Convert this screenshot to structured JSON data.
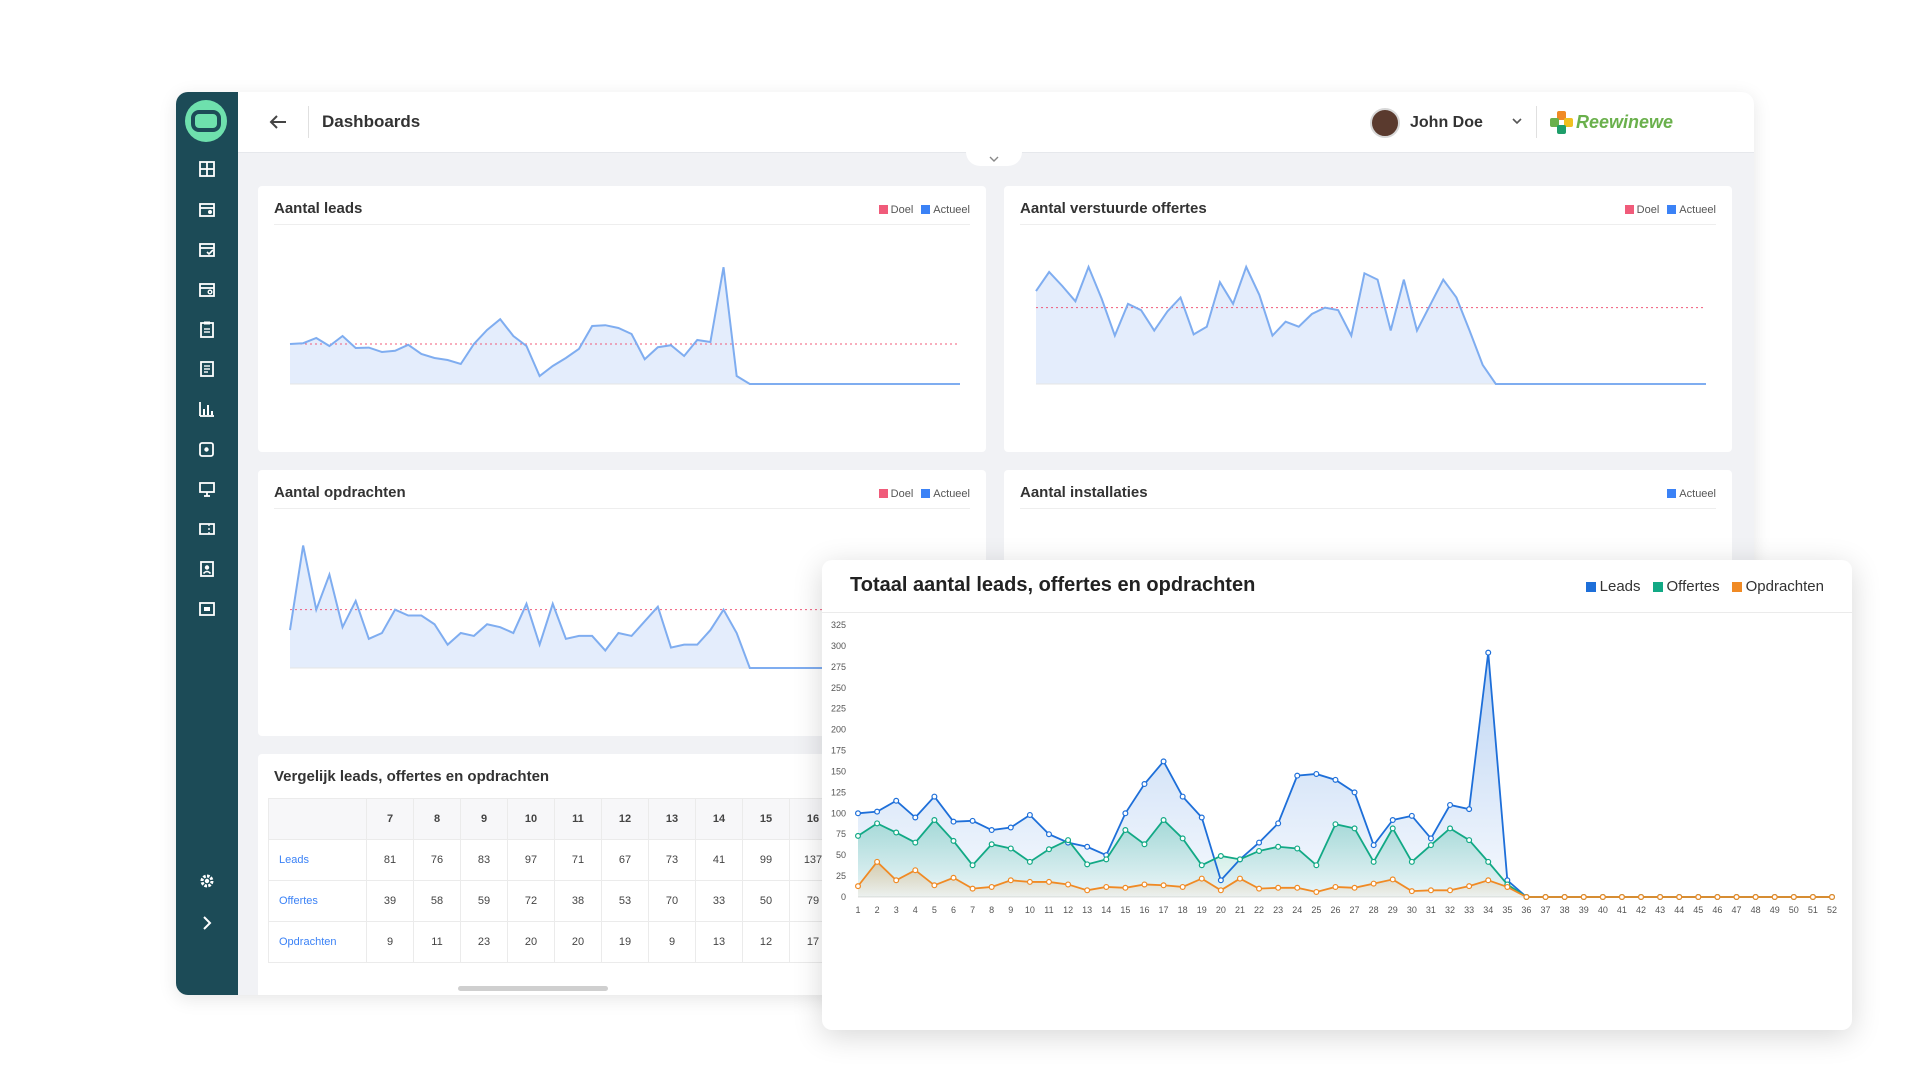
{
  "header": {
    "title": "Dashboards",
    "user_name": "John Doe",
    "brand_name": "Reewinewe"
  },
  "sidebar": {
    "icons": [
      "dashboard-grid-icon",
      "calendar-icon",
      "calendar-check-icon",
      "calendar-user-icon",
      "clipboard-icon",
      "document-icon",
      "bar-chart-icon",
      "puzzle-icon",
      "presentation-icon",
      "ticket-icon",
      "contact-card-icon",
      "media-icon"
    ],
    "settings_icon": "gear-icon",
    "expand_icon": "chevron-right-icon"
  },
  "colors": {
    "sidebar": "#1c4b57",
    "accent": "#6ee0ad",
    "doel": "#f05b7a",
    "actueel": "#3b82f6",
    "leads": "#1e6fd9",
    "offertes": "#12a985",
    "opdrachten": "#f08a24"
  },
  "cards": {
    "leads": {
      "title": "Aantal leads",
      "legend": [
        "Doel",
        "Actueel"
      ]
    },
    "offertes": {
      "title": "Aantal verstuurde offertes",
      "legend": [
        "Doel",
        "Actueel"
      ]
    },
    "opdrachten": {
      "title": "Aantal opdrachten",
      "legend": [
        "Doel",
        "Actueel"
      ]
    },
    "installaties": {
      "title": "Aantal installaties",
      "legend": [
        "Actueel"
      ]
    }
  },
  "compare": {
    "title": "Vergelijk leads, offertes en opdrachten",
    "weeks": [
      "7",
      "8",
      "9",
      "10",
      "11",
      "12",
      "13",
      "14",
      "15",
      "16"
    ],
    "rows": [
      {
        "label": "Leads",
        "values": [
          "81",
          "76",
          "83",
          "97",
          "71",
          "67",
          "73",
          "41",
          "99",
          "137"
        ]
      },
      {
        "label": "Offertes",
        "values": [
          "39",
          "58",
          "59",
          "72",
          "38",
          "53",
          "70",
          "33",
          "50",
          "79"
        ]
      },
      {
        "label": "Opdrachten",
        "values": [
          "9",
          "11",
          "23",
          "20",
          "20",
          "19",
          "9",
          "13",
          "12",
          "17"
        ]
      }
    ]
  },
  "chart_data": {
    "type": "area",
    "title": "Totaal aantal leads, offertes en opdrachten",
    "legend_position": "top-right",
    "x": [
      1,
      2,
      3,
      4,
      5,
      6,
      7,
      8,
      9,
      10,
      11,
      12,
      13,
      14,
      15,
      16,
      17,
      18,
      19,
      20,
      21,
      22,
      23,
      24,
      25,
      26,
      27,
      28,
      29,
      30,
      31,
      32,
      33,
      34,
      35,
      36,
      37,
      38,
      39,
      40,
      41,
      42,
      43,
      44,
      45,
      46,
      47,
      48,
      49,
      50,
      51,
      52
    ],
    "ylim": [
      0,
      325
    ],
    "yticks": [
      0,
      25,
      50,
      75,
      100,
      125,
      150,
      175,
      200,
      225,
      250,
      275,
      300,
      325
    ],
    "series": [
      {
        "name": "Leads",
        "values": [
          100,
          102,
          115,
          95,
          120,
          90,
          91,
          80,
          83,
          98,
          75,
          65,
          60,
          50,
          100,
          135,
          162,
          120,
          95,
          20,
          45,
          65,
          88,
          145,
          147,
          140,
          125,
          62,
          92,
          97,
          70,
          110,
          105,
          292,
          20,
          0,
          0,
          0,
          0,
          0,
          0,
          0,
          0,
          0,
          0,
          0,
          0,
          0,
          0,
          0,
          0,
          0
        ]
      },
      {
        "name": "Offertes",
        "values": [
          73,
          88,
          77,
          65,
          92,
          67,
          38,
          63,
          58,
          42,
          57,
          68,
          39,
          45,
          80,
          63,
          92,
          70,
          38,
          49,
          45,
          55,
          60,
          58,
          38,
          87,
          82,
          42,
          82,
          42,
          62,
          82,
          68,
          42,
          15,
          0,
          0,
          0,
          0,
          0,
          0,
          0,
          0,
          0,
          0,
          0,
          0,
          0,
          0,
          0,
          0,
          0
        ]
      },
      {
        "name": "Opdrachten",
        "values": [
          13,
          42,
          20,
          32,
          14,
          23,
          10,
          12,
          20,
          18,
          18,
          15,
          8,
          12,
          11,
          15,
          14,
          12,
          22,
          8,
          22,
          10,
          11,
          11,
          6,
          12,
          11,
          16,
          21,
          7,
          8,
          8,
          13,
          20,
          12,
          0,
          0,
          0,
          0,
          0,
          0,
          0,
          0,
          0,
          0,
          0,
          0,
          0,
          0,
          0,
          0,
          0
        ]
      }
    ]
  }
}
